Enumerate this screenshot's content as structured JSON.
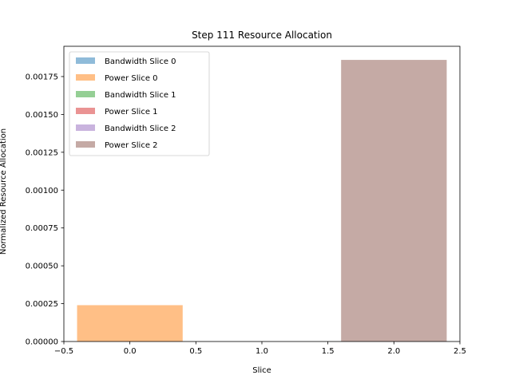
{
  "chart_data": {
    "type": "bar",
    "title": "Step 111 Resource Allocation",
    "xlabel": "Slice",
    "ylabel": "Normalized Resource Allocation",
    "xlim": [
      -0.5,
      2.5
    ],
    "ylim": [
      0,
      0.00195
    ],
    "xticks": [
      -0.5,
      0.0,
      0.5,
      1.0,
      1.5,
      2.0,
      2.5
    ],
    "xtick_labels": [
      "−0.5",
      "0.0",
      "0.5",
      "1.0",
      "1.5",
      "2.0",
      "2.5"
    ],
    "yticks": [
      0,
      0.00025,
      0.0005,
      0.00075,
      0.001,
      0.00125,
      0.0015,
      0.00175
    ],
    "ytick_labels": [
      "0.00000",
      "0.00025",
      "0.00050",
      "0.00075",
      "0.00100",
      "0.00125",
      "0.00150",
      "0.00175"
    ],
    "bar_width": 0.8,
    "grid": false,
    "legend_position": "top-left",
    "series": [
      {
        "name": "Bandwidth Slice 0",
        "x": 0,
        "value": 0,
        "color": "#1f77b4"
      },
      {
        "name": "Power Slice 0",
        "x": 0,
        "value": 0.00024,
        "color": "#ff7f0e"
      },
      {
        "name": "Bandwidth Slice 1",
        "x": 1,
        "value": 0,
        "color": "#2ca02c"
      },
      {
        "name": "Power Slice 1",
        "x": 1,
        "value": 0,
        "color": "#d62728"
      },
      {
        "name": "Bandwidth Slice 2",
        "x": 2,
        "value": 0,
        "color": "#9467bd"
      },
      {
        "name": "Power Slice 2",
        "x": 2,
        "value": 0.00186,
        "color": "#8c564b"
      }
    ],
    "bar_alpha": 0.5
  }
}
